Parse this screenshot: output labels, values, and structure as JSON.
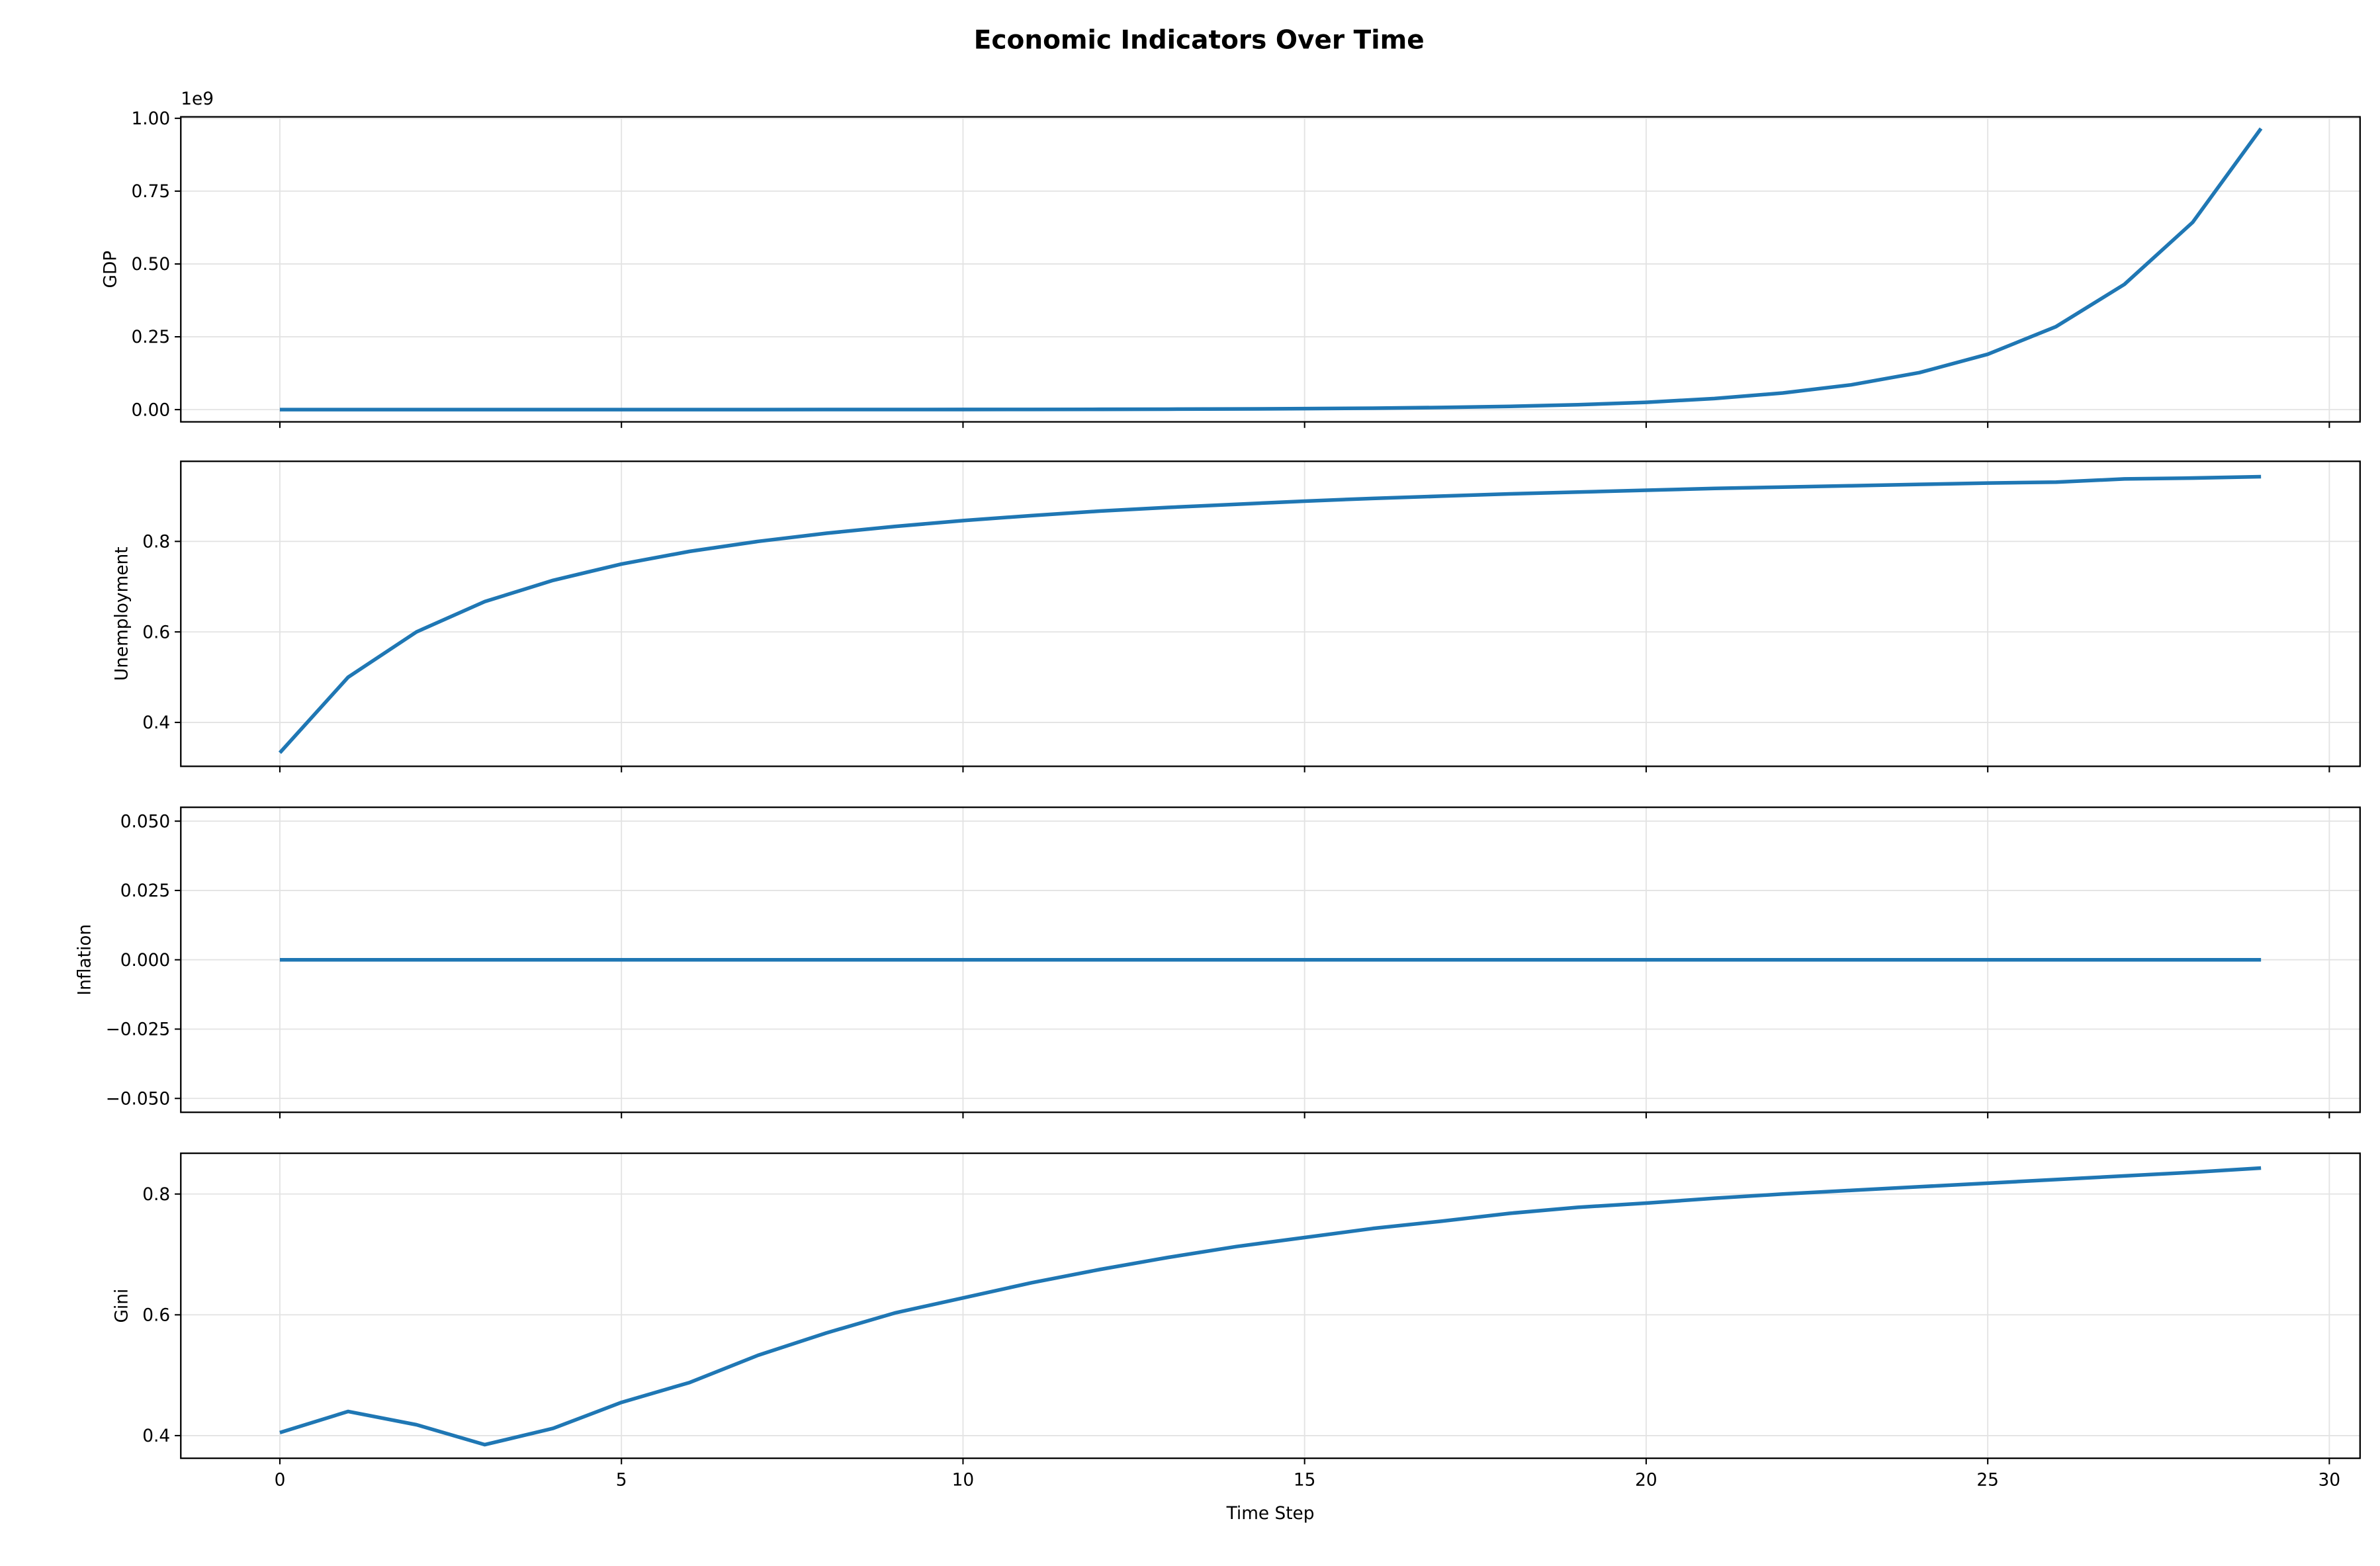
{
  "title": "Economic Indicators Over Time",
  "chart_data": [
    {
      "type": "line",
      "ylabel": "GDP",
      "y_offset_label": "1e9",
      "x": [
        0,
        1,
        2,
        3,
        4,
        5,
        6,
        7,
        8,
        9,
        10,
        11,
        12,
        13,
        14,
        15,
        16,
        17,
        18,
        19,
        20,
        21,
        22,
        23,
        24,
        25,
        26,
        27,
        28,
        29
      ],
      "series": [
        {
          "name": "GDP",
          "color": "#1f77b4",
          "values": [
            7.5e-06,
            1.1e-05,
            1.7e-05,
            2.5e-05,
            3.8e-05,
            5.7e-05,
            8.5e-05,
            0.00013,
            0.00019,
            0.00029,
            0.00043,
            0.00065,
            0.001,
            0.0015,
            0.0022,
            0.0033,
            0.0049,
            0.0074,
            0.0111,
            0.0167,
            0.025,
            0.038,
            0.057,
            0.085,
            0.127,
            0.19,
            0.285,
            0.43,
            0.643,
            0.965
          ]
        }
      ],
      "xlim": [
        -1.45,
        30.45
      ],
      "xticks": [
        0,
        5,
        10,
        15,
        20,
        25,
        30
      ],
      "ylim": [
        -0.042,
        1.005
      ],
      "yticks": [
        {
          "value": 0,
          "label": "0.00"
        },
        0.25,
        {
          "value": 0.5,
          "label": "0.50"
        },
        0.75,
        {
          "value": 1,
          "label": "1.00"
        }
      ],
      "grid": true
    },
    {
      "type": "line",
      "ylabel": "Unemployment",
      "x": [
        0,
        1,
        2,
        3,
        4,
        5,
        6,
        7,
        8,
        9,
        10,
        11,
        12,
        13,
        14,
        15,
        16,
        17,
        18,
        19,
        20,
        21,
        22,
        23,
        24,
        25,
        26,
        27,
        28,
        29
      ],
      "series": [
        {
          "name": "Unemployment",
          "color": "#1f77b4",
          "values": [
            0.333,
            0.5,
            0.6,
            0.667,
            0.714,
            0.75,
            0.778,
            0.8,
            0.818,
            0.833,
            0.846,
            0.857,
            0.867,
            0.875,
            0.882,
            0.889,
            0.895,
            0.9,
            0.905,
            0.909,
            0.913,
            0.917,
            0.92,
            0.923,
            0.926,
            0.929,
            0.931,
            0.938,
            0.94,
            0.943
          ]
        }
      ],
      "xlim": [
        -1.45,
        30.45
      ],
      "xticks": [
        0,
        5,
        10,
        15,
        20,
        25,
        30
      ],
      "ylim": [
        0.303,
        0.977
      ],
      "yticks": [
        0.4,
        0.6,
        0.8
      ],
      "grid": true
    },
    {
      "type": "line",
      "ylabel": "Inflation",
      "x": [
        0,
        1,
        2,
        3,
        4,
        5,
        6,
        7,
        8,
        9,
        10,
        11,
        12,
        13,
        14,
        15,
        16,
        17,
        18,
        19,
        20,
        21,
        22,
        23,
        24,
        25,
        26,
        27,
        28,
        29
      ],
      "series": [
        {
          "name": "Inflation",
          "color": "#1f77b4",
          "values": [
            0,
            0,
            0,
            0,
            0,
            0,
            0,
            0,
            0,
            0,
            0,
            0,
            0,
            0,
            0,
            0,
            0,
            0,
            0,
            0,
            0,
            0,
            0,
            0,
            0,
            0,
            0,
            0,
            0,
            0
          ]
        }
      ],
      "xlim": [
        -1.45,
        30.45
      ],
      "xticks": [
        0,
        5,
        10,
        15,
        20,
        25,
        30
      ],
      "ylim": [
        -0.055,
        0.055
      ],
      "yticks": [
        {
          "value": -0.05,
          "label": "−0.050"
        },
        {
          "value": -0.025,
          "label": "−0.025"
        },
        {
          "value": 0,
          "label": "0.000"
        },
        0.025,
        {
          "value": 0.05,
          "label": "0.050"
        }
      ],
      "grid": true
    },
    {
      "type": "line",
      "ylabel": "Gini",
      "xlabel": "Time Step",
      "x": [
        0,
        1,
        2,
        3,
        4,
        5,
        6,
        7,
        8,
        9,
        10,
        11,
        12,
        13,
        14,
        15,
        16,
        17,
        18,
        19,
        20,
        21,
        22,
        23,
        24,
        25,
        26,
        27,
        28,
        29
      ],
      "series": [
        {
          "name": "Gini",
          "color": "#1f77b4",
          "values": [
            0.405,
            0.44,
            0.418,
            0.385,
            0.412,
            0.455,
            0.488,
            0.533,
            0.57,
            0.603,
            0.628,
            0.653,
            0.675,
            0.695,
            0.713,
            0.728,
            0.743,
            0.755,
            0.768,
            0.778,
            0.785,
            0.793,
            0.8,
            0.806,
            0.812,
            0.818,
            0.824,
            0.83,
            0.836,
            0.843
          ]
        }
      ],
      "xlim": [
        -1.45,
        30.45
      ],
      "xticks": [
        0,
        5,
        10,
        15,
        20,
        25,
        30
      ],
      "ylim": [
        0.3625,
        0.8675
      ],
      "yticks": [
        0.4,
        0.6,
        0.8
      ],
      "grid": true
    }
  ]
}
